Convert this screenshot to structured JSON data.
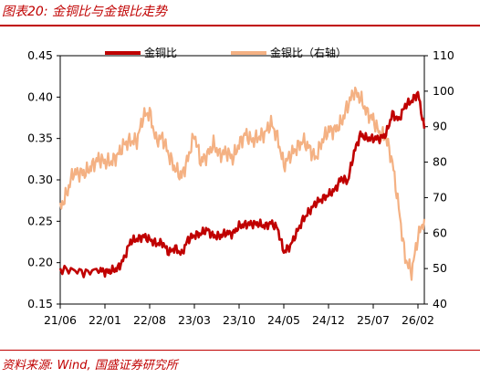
{
  "header": {
    "title": "图表20: 金铜比与金银比走势"
  },
  "footer": {
    "source": "资料来源: Wind, 国盛证券研究所"
  },
  "colors": {
    "accent": "#c00000",
    "series_copper": "#c00000",
    "series_silver": "#f4b183"
  },
  "chart_data": {
    "type": "line",
    "title": "",
    "x_ticks": [
      "21/06",
      "22/01",
      "22/08",
      "23/03",
      "23/10",
      "24/05",
      "24/12",
      "25/07",
      "26/02"
    ],
    "y_left": {
      "ylim": [
        0.15,
        0.45
      ],
      "ticks": [
        "0.15",
        "0.20",
        "0.25",
        "0.30",
        "0.35",
        "0.40",
        "0.45"
      ]
    },
    "y_right": {
      "ylim": [
        40,
        110
      ],
      "ticks": [
        "40",
        "50",
        "60",
        "70",
        "80",
        "90",
        "100",
        "110"
      ]
    },
    "legend_position": "top",
    "series": [
      {
        "name": "金铜比",
        "axis": "left",
        "color": "#c00000",
        "points": [
          [
            "21/06",
            0.192
          ],
          [
            "21/08",
            0.191
          ],
          [
            "21/10",
            0.188
          ],
          [
            "21/12",
            0.192
          ],
          [
            "22/01",
            0.189
          ],
          [
            "22/02",
            0.19
          ],
          [
            "22/03",
            0.193
          ],
          [
            "22/04",
            0.205
          ],
          [
            "22/05",
            0.226
          ],
          [
            "22/06",
            0.228
          ],
          [
            "22/07",
            0.232
          ],
          [
            "22/08",
            0.228
          ],
          [
            "22/09",
            0.223
          ],
          [
            "22/10",
            0.224
          ],
          [
            "22/11",
            0.212
          ],
          [
            "22/12",
            0.218
          ],
          [
            "23/01",
            0.21
          ],
          [
            "23/02",
            0.228
          ],
          [
            "23/03",
            0.233
          ],
          [
            "23/04",
            0.235
          ],
          [
            "23/05",
            0.24
          ],
          [
            "23/06",
            0.232
          ],
          [
            "23/07",
            0.232
          ],
          [
            "23/08",
            0.236
          ],
          [
            "23/09",
            0.235
          ],
          [
            "23/10",
            0.244
          ],
          [
            "23/11",
            0.246
          ],
          [
            "23/12",
            0.247
          ],
          [
            "24/01",
            0.247
          ],
          [
            "24/02",
            0.244
          ],
          [
            "24/03",
            0.248
          ],
          [
            "24/04",
            0.242
          ],
          [
            "24/05",
            0.213
          ],
          [
            "24/06",
            0.22
          ],
          [
            "24/07",
            0.236
          ],
          [
            "24/08",
            0.252
          ],
          [
            "24/09",
            0.262
          ],
          [
            "24/10",
            0.272
          ],
          [
            "24/11",
            0.277
          ],
          [
            "24/12",
            0.282
          ],
          [
            "25/01",
            0.288
          ],
          [
            "25/02",
            0.302
          ],
          [
            "25/03",
            0.298
          ],
          [
            "25/04",
            0.333
          ],
          [
            "25/05",
            0.355
          ],
          [
            "25/06",
            0.35
          ],
          [
            "25/07",
            0.35
          ],
          [
            "25/08",
            0.35
          ],
          [
            "25/09",
            0.355
          ],
          [
            "25/10",
            0.38
          ],
          [
            "25/11",
            0.372
          ],
          [
            "25/12",
            0.39
          ],
          [
            "26/01",
            0.395
          ],
          [
            "26/02",
            0.405
          ],
          [
            "26/03",
            0.362
          ]
        ]
      },
      {
        "name": "金银比（右轴）",
        "axis": "right",
        "color": "#f4b183",
        "points": [
          [
            "21/06",
            67
          ],
          [
            "21/07",
            71
          ],
          [
            "21/08",
            77
          ],
          [
            "21/09",
            77
          ],
          [
            "21/10",
            77
          ],
          [
            "21/11",
            79
          ],
          [
            "21/12",
            81
          ],
          [
            "22/01",
            80
          ],
          [
            "22/02",
            80
          ],
          [
            "22/03",
            82
          ],
          [
            "22/04",
            85
          ],
          [
            "22/05",
            86
          ],
          [
            "22/06",
            86
          ],
          [
            "22/07",
            93
          ],
          [
            "22/08",
            94
          ],
          [
            "22/09",
            86
          ],
          [
            "22/10",
            87
          ],
          [
            "22/11",
            82
          ],
          [
            "22/12",
            78
          ],
          [
            "23/01",
            76
          ],
          [
            "23/02",
            81
          ],
          [
            "23/03",
            88
          ],
          [
            "23/04",
            80
          ],
          [
            "23/05",
            82
          ],
          [
            "23/06",
            85
          ],
          [
            "23/07",
            82
          ],
          [
            "23/08",
            83
          ],
          [
            "23/09",
            81
          ],
          [
            "23/10",
            85
          ],
          [
            "23/11",
            88
          ],
          [
            "23/12",
            86
          ],
          [
            "24/01",
            87
          ],
          [
            "24/02",
            88
          ],
          [
            "24/03",
            91
          ],
          [
            "24/04",
            87
          ],
          [
            "24/05",
            79
          ],
          [
            "24/06",
            82
          ],
          [
            "24/07",
            84
          ],
          [
            "24/08",
            86
          ],
          [
            "24/09",
            84
          ],
          [
            "24/10",
            81
          ],
          [
            "24/11",
            86
          ],
          [
            "24/12",
            89
          ],
          [
            "25/01",
            89
          ],
          [
            "25/02",
            91
          ],
          [
            "25/03",
            96
          ],
          [
            "25/04",
            100
          ],
          [
            "25/05",
            98
          ],
          [
            "25/06",
            94
          ],
          [
            "25/07",
            92
          ],
          [
            "25/08",
            88
          ],
          [
            "25/09",
            87
          ],
          [
            "25/10",
            80
          ],
          [
            "25/11",
            67
          ],
          [
            "25/12",
            53
          ],
          [
            "26/01",
            49
          ],
          [
            "26/02",
            59
          ],
          [
            "26/03",
            64
          ]
        ]
      }
    ]
  }
}
